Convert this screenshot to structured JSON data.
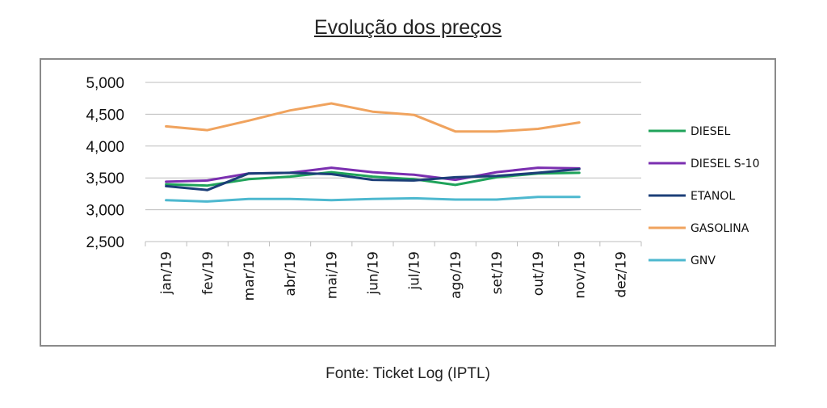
{
  "title": "Evolução dos preços",
  "source": "Fonte: Ticket Log (IPTL)",
  "chart_data": {
    "type": "line",
    "title": "Evolução dos preços",
    "categories": [
      "jan/19",
      "fev/19",
      "mar/19",
      "abr/19",
      "mai/19",
      "jun/19",
      "jul/19",
      "ago/19",
      "set/19",
      "out/19",
      "nov/19",
      "dez/19"
    ],
    "ylim": [
      2500,
      5000
    ],
    "yticks": [
      "5,000",
      "4,500",
      "4,000",
      "3,500",
      "3,000",
      "2,500"
    ],
    "ytick_values": [
      5000,
      4500,
      4000,
      3500,
      3000,
      2500
    ],
    "grid": true,
    "legend_position": "right",
    "series": [
      {
        "name": "DIESEL",
        "color": "#1fa35a",
        "values": [
          3400,
          3380,
          3480,
          3520,
          3590,
          3520,
          3480,
          3390,
          3510,
          3570,
          3580,
          null
        ]
      },
      {
        "name": "DIESEL S-10",
        "color": "#7b2fb0",
        "values": [
          3440,
          3460,
          3570,
          3580,
          3660,
          3590,
          3550,
          3470,
          3590,
          3660,
          3650,
          null
        ]
      },
      {
        "name": "ETANOL",
        "color": "#1c3f78",
        "values": [
          3370,
          3310,
          3570,
          3580,
          3560,
          3470,
          3460,
          3510,
          3530,
          3580,
          3640,
          null
        ]
      },
      {
        "name": "GASOLINA",
        "color": "#f0a35e",
        "values": [
          4310,
          4250,
          4400,
          4560,
          4670,
          4540,
          4490,
          4230,
          4230,
          4270,
          4370,
          null
        ]
      },
      {
        "name": "GNV",
        "color": "#4db8cf",
        "values": [
          3150,
          3130,
          3170,
          3170,
          3150,
          3170,
          3180,
          3160,
          3160,
          3200,
          3200,
          null
        ]
      }
    ]
  }
}
